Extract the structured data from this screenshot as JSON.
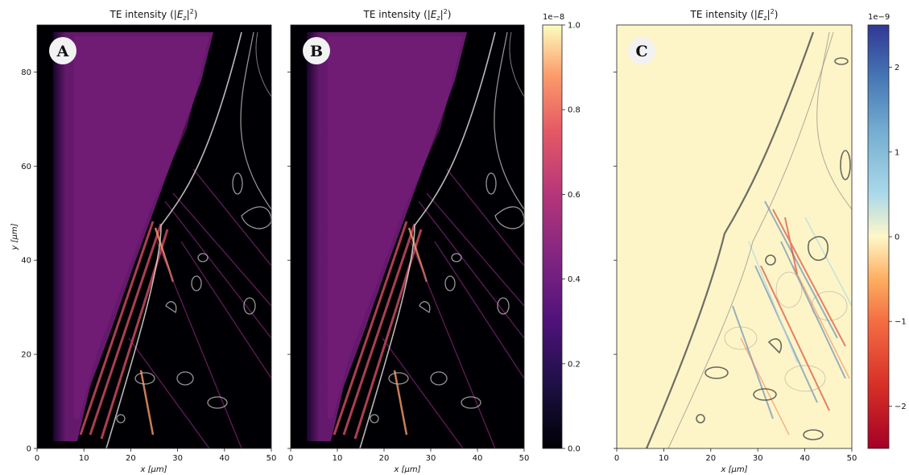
{
  "chart_data": [
    {
      "panel_label": "A",
      "type": "heatmap",
      "title": "TE intensity (|E_z|^2)",
      "title_main": "TE intensity (|",
      "title_sym": "E",
      "title_sub": "z",
      "title_end": "|",
      "title_sup": "2",
      "title_close": ")",
      "xlabel": "x [µm]",
      "ylabel": "y [µm]",
      "xlim": [
        0,
        50
      ],
      "ylim": [
        0,
        90
      ],
      "xticks": [
        0,
        10,
        20,
        30,
        40,
        50
      ],
      "yticks": [
        0,
        20,
        40,
        60,
        80
      ],
      "colormap": "magma",
      "grid": false
    },
    {
      "panel_label": "B",
      "type": "heatmap",
      "title": "TE intensity (|E_z|^2)",
      "xlabel": "x [µm]",
      "xlim": [
        0,
        50
      ],
      "ylim": [
        0,
        90
      ],
      "xticks": [
        0,
        10,
        20,
        30,
        40,
        50
      ],
      "colormap": "magma",
      "colorbar": {
        "min": 0.0,
        "max": 1.0,
        "ticks": [
          "0.0",
          "0.2",
          "0.4",
          "0.6",
          "0.8",
          "1.0"
        ],
        "scale_label": "1e−8"
      },
      "grid": false
    },
    {
      "panel_label": "C",
      "type": "heatmap",
      "title": "TE intensity (|E_z|^2)",
      "xlabel": "x [µm]",
      "xlim": [
        0,
        50
      ],
      "ylim": [
        0,
        90
      ],
      "xticks": [
        0,
        10,
        20,
        30,
        40,
        50
      ],
      "colormap": "RdYlBu",
      "colorbar": {
        "min": -2.5,
        "max": 2.5,
        "ticks": [
          "2",
          "1",
          "0",
          "−1",
          "−2"
        ],
        "tick_values": [
          2,
          1,
          0,
          -1,
          -2
        ],
        "scale_label": "1e−9"
      },
      "grid": false
    }
  ]
}
